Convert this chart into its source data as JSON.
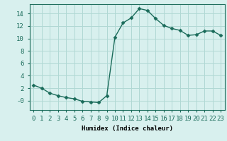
{
  "x": [
    0,
    1,
    2,
    3,
    4,
    5,
    6,
    7,
    8,
    9,
    10,
    11,
    12,
    13,
    14,
    15,
    16,
    17,
    18,
    19,
    20,
    21,
    22,
    23
  ],
  "y": [
    2.5,
    2.0,
    1.2,
    0.8,
    0.5,
    0.3,
    -0.1,
    -0.2,
    -0.3,
    0.8,
    10.2,
    12.5,
    13.3,
    14.8,
    14.5,
    13.2,
    12.1,
    11.6,
    11.3,
    10.5,
    10.6,
    11.2,
    11.2,
    10.5
  ],
  "line_color": "#1a6b5a",
  "bg_color": "#d8f0ee",
  "grid_color": "#b0d8d4",
  "xlabel": "Humidex (Indice chaleur)",
  "ylabel": "",
  "ylim": [
    -1.5,
    15.5
  ],
  "xlim": [
    -0.5,
    23.5
  ],
  "yticks": [
    0,
    2,
    4,
    6,
    8,
    10,
    12,
    14
  ],
  "ytick_labels": [
    "-0",
    "2",
    "4",
    "6",
    "8",
    "10",
    "12",
    "14"
  ],
  "xticks": [
    0,
    1,
    2,
    3,
    4,
    5,
    6,
    7,
    8,
    9,
    10,
    11,
    12,
    13,
    14,
    15,
    16,
    17,
    18,
    19,
    20,
    21,
    22,
    23
  ],
  "marker": "D",
  "marker_size": 2.5,
  "line_width": 1.0,
  "font_size": 6.5
}
